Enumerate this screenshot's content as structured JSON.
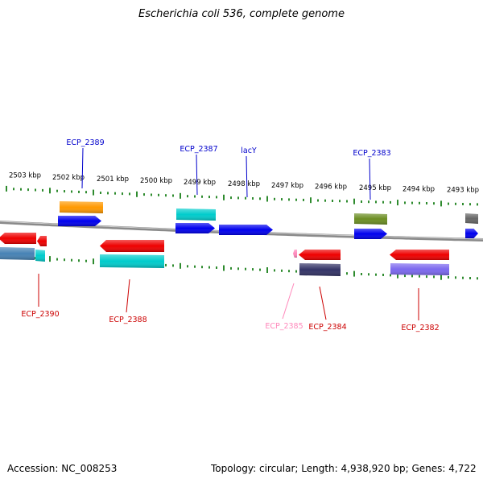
{
  "title": "Escherichia coli 536, complete genome",
  "footer": {
    "accession": "Accession: NC_008253",
    "summary": "Topology: circular; Length: 4,938,920 bp; Genes: 4,722"
  },
  "colors": {
    "backbone": "#8a8a8a",
    "tick": "#2e8b2e",
    "label_top": "#0000cc",
    "label_bottom": "#cc0000",
    "label_pink": "#ff88bb"
  },
  "ruler": [
    {
      "label": "2503 kbp"
    },
    {
      "label": "2502 kbp"
    },
    {
      "label": "2501 kbp"
    },
    {
      "label": "2500 kbp"
    },
    {
      "label": "2499 kbp"
    },
    {
      "label": "2498 kbp"
    },
    {
      "label": "2497 kbp"
    },
    {
      "label": "2496 kbp"
    },
    {
      "label": "2495 kbp"
    },
    {
      "label": "2494 kbp"
    },
    {
      "label": "2493 kbp"
    }
  ],
  "gene_labels": [
    {
      "text": "ECP_2389",
      "side": "top",
      "color": "#0000cc"
    },
    {
      "text": "ECP_2387",
      "side": "top",
      "color": "#0000cc"
    },
    {
      "text": "lacY",
      "side": "top",
      "color": "#0000cc"
    },
    {
      "text": "ECP_2383",
      "side": "top",
      "color": "#0000cc"
    },
    {
      "text": "ECP_2390",
      "side": "bottom",
      "color": "#cc0000"
    },
    {
      "text": "ECP_2388",
      "side": "bottom",
      "color": "#cc0000"
    },
    {
      "text": "ECP_2385",
      "side": "bottom",
      "color": "#ff88bb"
    },
    {
      "text": "ECP_2384",
      "side": "bottom",
      "color": "#cc0000"
    },
    {
      "text": "ECP_2382",
      "side": "bottom",
      "color": "#cc0000"
    }
  ],
  "features": [
    {
      "name": "orange-block",
      "color": "#ff9900"
    },
    {
      "name": "blue-arrow-1",
      "color": "#0000ee"
    },
    {
      "name": "cyan-block-1",
      "color": "#00cccc"
    },
    {
      "name": "blue-arrow-2",
      "color": "#0000ee"
    },
    {
      "name": "blue-arrow-3",
      "color": "#0000ee"
    },
    {
      "name": "olive-block",
      "color": "#6b8e23"
    },
    {
      "name": "blue-arrow-4",
      "color": "#0000ee"
    },
    {
      "name": "gray-block",
      "color": "#666666"
    },
    {
      "name": "blue-arrow-5",
      "color": "#0000ee"
    },
    {
      "name": "red-arrow-1",
      "color": "#ee0000"
    },
    {
      "name": "red-arrow-2",
      "color": "#ee0000"
    },
    {
      "name": "steel-block",
      "color": "#4682b4"
    },
    {
      "name": "cyan-small",
      "color": "#00cccc"
    },
    {
      "name": "red-arrow-3",
      "color": "#ee0000"
    },
    {
      "name": "cyan-block-2",
      "color": "#00cccc"
    },
    {
      "name": "pink-arrow",
      "color": "#ff88bb"
    },
    {
      "name": "red-arrow-4",
      "color": "#ee0000"
    },
    {
      "name": "navy-block",
      "color": "#333366"
    },
    {
      "name": "red-arrow-5",
      "color": "#ee0000"
    },
    {
      "name": "purple-block",
      "color": "#7b68ee"
    }
  ]
}
